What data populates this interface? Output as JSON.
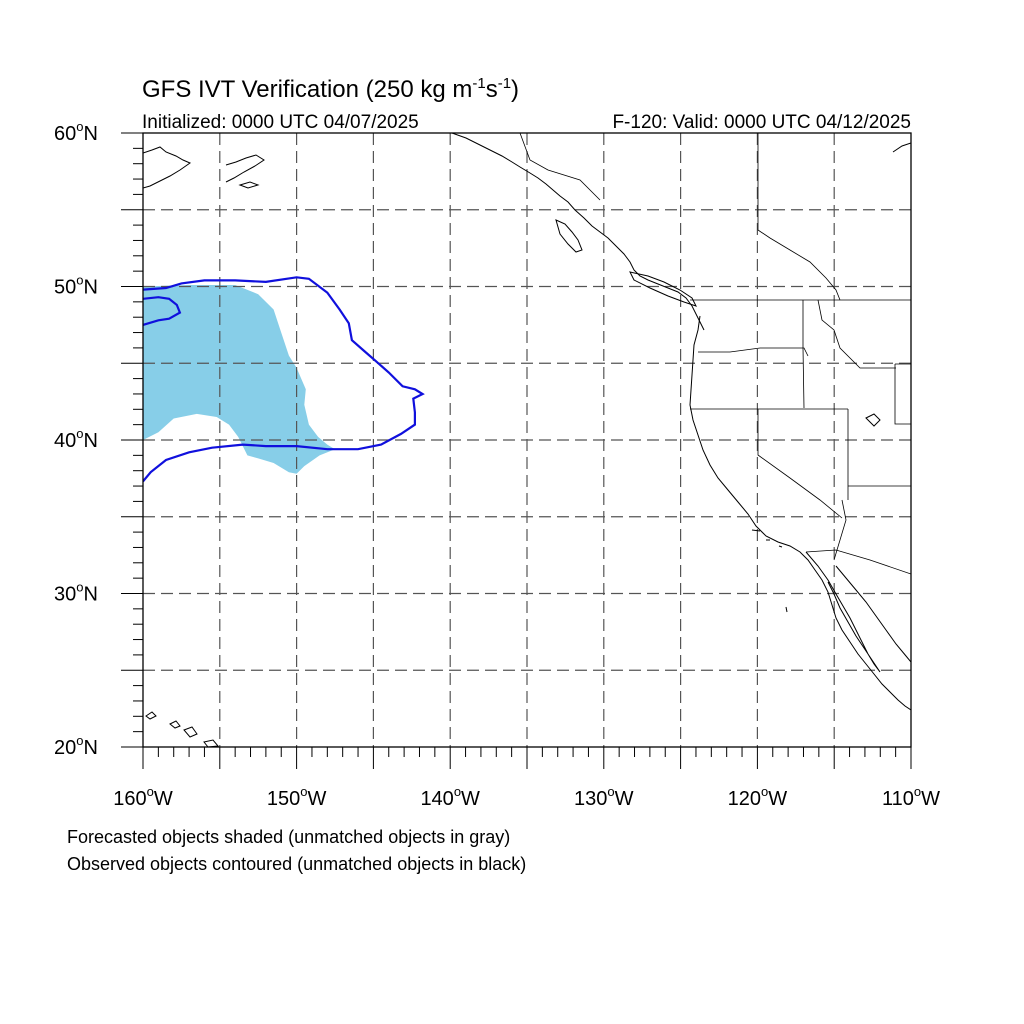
{
  "figure": {
    "title_main": "GFS IVT Verification (250 kg m",
    "title_sup1": "-1",
    "title_s": "s",
    "title_sup2": "-1",
    "title_close": ")",
    "init_text": "Initialized: 0000 UTC 04/07/2025",
    "valid_text": "F-120: Valid: 0000 UTC 04/12/2025",
    "caption_line1": "Forecasted objects shaded (unmatched objects in gray)",
    "caption_line2": "Observed objects contoured (unmatched objects in black)"
  },
  "map": {
    "projection": "cylindrical equidistant",
    "lon_range": [
      -160,
      -110
    ],
    "lat_range": [
      20,
      60
    ],
    "lat_labels": [
      "60",
      "50",
      "40",
      "30",
      "20"
    ],
    "lat_label_values": [
      60,
      50,
      40,
      30,
      20
    ],
    "lat_hemisphere": "N",
    "lon_labels": [
      "160",
      "150",
      "140",
      "130",
      "120",
      "110"
    ],
    "lon_label_values": [
      -160,
      -150,
      -140,
      -130,
      -120,
      -110
    ],
    "lon_hemisphere": "W",
    "degree_symbol": "o",
    "gridline_lons": [
      -155,
      -150,
      -145,
      -140,
      -135,
      -130,
      -125,
      -120,
      -115
    ],
    "gridline_lats": [
      25,
      30,
      35,
      40,
      45,
      50,
      55
    ],
    "colors": {
      "forecast_fill": "#87CEE8",
      "observed_contour": "#1010DD",
      "grid": "#555555",
      "coast": "#000000"
    },
    "forecast_object": {
      "label": "Forecasted objects shaded",
      "polygon_lonlat": [
        [
          -160,
          50
        ],
        [
          -157,
          50.1
        ],
        [
          -154,
          50.1
        ],
        [
          -152.5,
          49.5
        ],
        [
          -151.5,
          48.5
        ],
        [
          -151,
          47
        ],
        [
          -150.5,
          45.5
        ],
        [
          -150,
          44.7
        ],
        [
          -149.4,
          43.3
        ],
        [
          -149.5,
          42.3
        ],
        [
          -149.2,
          41
        ],
        [
          -148.6,
          40.2
        ],
        [
          -148,
          39.7
        ],
        [
          -147.5,
          39.4
        ],
        [
          -148.5,
          39
        ],
        [
          -149.5,
          38.3
        ],
        [
          -150,
          37.8
        ],
        [
          -150.5,
          37.9
        ],
        [
          -151.5,
          38.5
        ],
        [
          -152.5,
          38.8
        ],
        [
          -153.2,
          39
        ],
        [
          -153.8,
          40.2
        ],
        [
          -154.4,
          41
        ],
        [
          -155.2,
          41.5
        ],
        [
          -156.5,
          41.7
        ],
        [
          -158,
          41.4
        ],
        [
          -159,
          40.5
        ],
        [
          -160,
          40
        ]
      ]
    },
    "observed_object": {
      "label": "Observed objects contoured",
      "polygon_lonlat": [
        [
          -160,
          49.8
        ],
        [
          -158.5,
          49.9
        ],
        [
          -157.5,
          50.2
        ],
        [
          -156,
          50.4
        ],
        [
          -154,
          50.4
        ],
        [
          -152,
          50.3
        ],
        [
          -150,
          50.6
        ],
        [
          -149.2,
          50.5
        ],
        [
          -148,
          49.6
        ],
        [
          -147.2,
          48.5
        ],
        [
          -146.6,
          47.6
        ],
        [
          -146.4,
          46.5
        ],
        [
          -145.6,
          45.8
        ],
        [
          -144.8,
          45.1
        ],
        [
          -144,
          44.4
        ],
        [
          -143.1,
          43.5
        ],
        [
          -142.3,
          43.3
        ],
        [
          -141.8,
          43
        ],
        [
          -142.4,
          42.7
        ],
        [
          -142.3,
          41.8
        ],
        [
          -142.3,
          41
        ],
        [
          -143.2,
          40.4
        ],
        [
          -144.5,
          39.7
        ],
        [
          -146,
          39.4
        ],
        [
          -148,
          39.4
        ],
        [
          -150,
          39.6
        ],
        [
          -152,
          39.6
        ],
        [
          -153.5,
          39.7
        ],
        [
          -155.5,
          39.5
        ],
        [
          -157,
          39.2
        ],
        [
          -158.5,
          38.7
        ],
        [
          -159.5,
          37.9
        ],
        [
          -160,
          37.3
        ]
      ],
      "inner_notch_lonlat": [
        [
          -160,
          49.2
        ],
        [
          -159,
          49.3
        ],
        [
          -158.3,
          49.2
        ],
        [
          -157.8,
          48.8
        ],
        [
          -157.6,
          48.3
        ],
        [
          -158.3,
          47.9
        ],
        [
          -159,
          47.8
        ],
        [
          -160,
          47.5
        ]
      ]
    }
  }
}
